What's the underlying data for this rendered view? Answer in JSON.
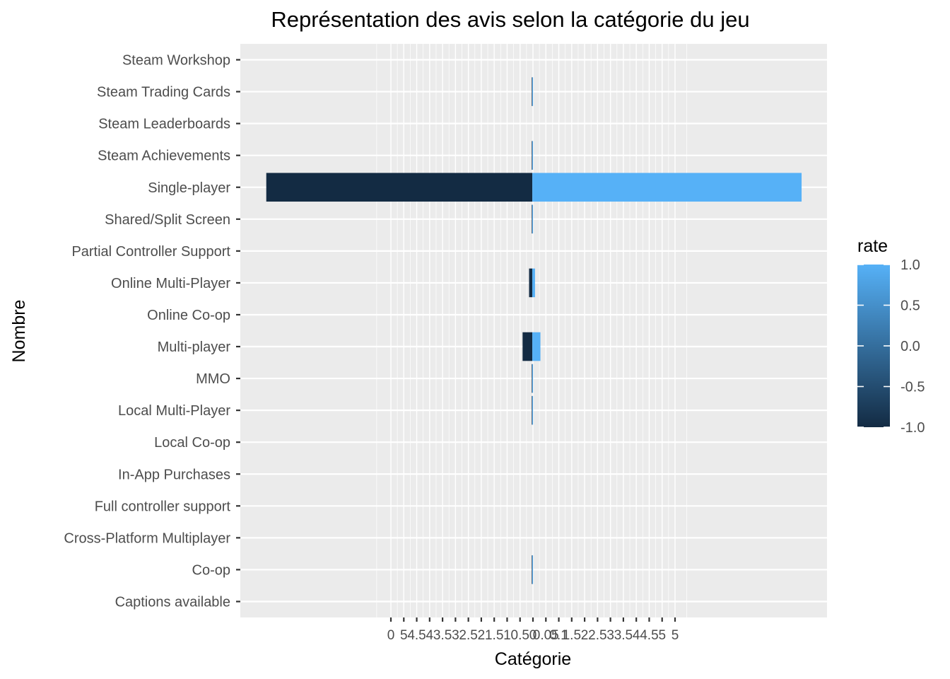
{
  "chart_data": {
    "type": "bar",
    "orientation": "horizontal",
    "title": "Représentation des avis selon la catégorie du jeu",
    "xlabel": "Catégorie",
    "ylabel": "Nombre",
    "xlim": [
      -5.4,
      5.45
    ],
    "categories": [
      "Captions available",
      "Co-op",
      "Cross-Platform Multiplayer",
      "Full controller support",
      "In-App Purchases",
      "Local Co-op",
      "Local Multi-Player",
      "MMO",
      "Multi-player",
      "Online Co-op",
      "Online Multi-Player",
      "Partial Controller Support",
      "Shared/Split Screen",
      "Single-player",
      "Steam Achievements",
      "Steam Leaderboards",
      "Steam Trading Cards",
      "Steam Workshop"
    ],
    "series": [
      {
        "rate": -1.0,
        "color": "#132B43",
        "values": [
          0,
          -0.01,
          0,
          0,
          0,
          0,
          -0.01,
          -0.01,
          -0.18,
          0,
          -0.06,
          0,
          -0.01,
          -4.92,
          -0.01,
          0,
          -0.01,
          0
        ]
      },
      {
        "rate": 1.0,
        "color": "#56B1F7",
        "values": [
          0,
          0.01,
          0,
          0,
          0,
          0,
          0.01,
          0.01,
          0.15,
          0,
          0.05,
          0,
          0.01,
          4.98,
          0.01,
          0,
          0.01,
          0
        ]
      }
    ],
    "x_tick_labels": [
      "0",
      "5",
      "4.5",
      "4",
      "3.5",
      "3",
      "2.5",
      "2",
      "1.5",
      "1",
      "0.5",
      "0",
      "0.05",
      "0.1",
      "1.5",
      "2",
      "2.5",
      "3",
      "3.5",
      "4",
      "4.5",
      "5",
      "5"
    ],
    "legend": {
      "title": "rate",
      "type": "colorbar",
      "placement": "right",
      "low_color": "#132B43",
      "high_color": "#56B1F7",
      "tick_labels": [
        "-1.0",
        "-0.5",
        "0.0",
        "0.5",
        "1.0"
      ]
    },
    "grid": true,
    "panel_background": "#EBEBEB",
    "grid_color": "#FFFFFF"
  }
}
